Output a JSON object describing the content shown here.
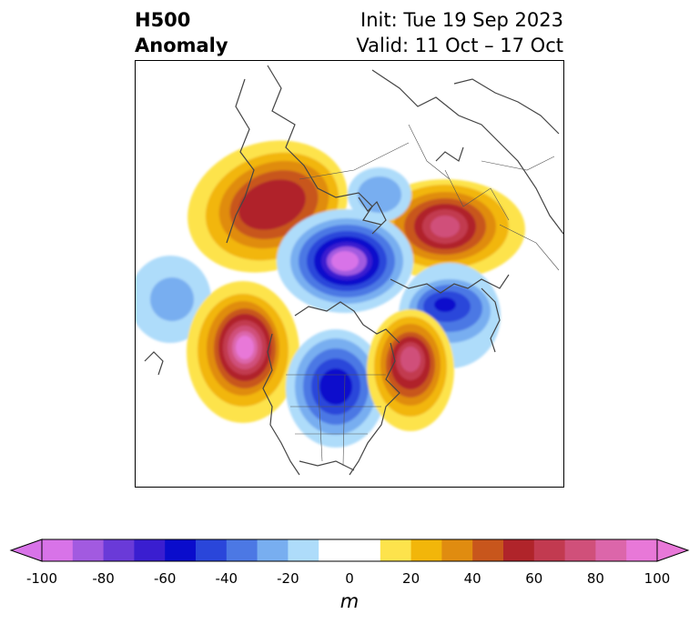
{
  "title": {
    "left_line1": "H500",
    "left_line2": "Anomaly",
    "init": "Init: Tue 19 Sep 2023",
    "valid": "Valid: 11 Oct – 17 Oct"
  },
  "colorbar": {
    "unit": "m",
    "ticks": [
      "-100",
      "-80",
      "-60",
      "-40",
      "-20",
      "0",
      "20",
      "40",
      "60",
      "80",
      "100"
    ],
    "bins": [
      {
        "from": -100,
        "to": -90,
        "color": "#d873e8"
      },
      {
        "from": -90,
        "to": -80,
        "color": "#a25ae0"
      },
      {
        "from": -80,
        "to": -70,
        "color": "#6a3ad8"
      },
      {
        "from": -70,
        "to": -60,
        "color": "#3a1ed0"
      },
      {
        "from": -60,
        "to": -50,
        "color": "#0a0ccc"
      },
      {
        "from": -50,
        "to": -40,
        "color": "#2a46da"
      },
      {
        "from": -40,
        "to": -30,
        "color": "#4c78e4"
      },
      {
        "from": -30,
        "to": -20,
        "color": "#78aef0"
      },
      {
        "from": -20,
        "to": -10,
        "color": "#aedcfa"
      },
      {
        "from": -10,
        "to": 10,
        "color": "#ffffff"
      },
      {
        "from": 10,
        "to": 20,
        "color": "#fde34c"
      },
      {
        "from": 20,
        "to": 30,
        "color": "#f2b60a"
      },
      {
        "from": 30,
        "to": 40,
        "color": "#e08c10"
      },
      {
        "from": 40,
        "to": 50,
        "color": "#c8561c"
      },
      {
        "from": 50,
        "to": 60,
        "color": "#b0242a"
      },
      {
        "from": 60,
        "to": 70,
        "color": "#c23a50"
      },
      {
        "from": 70,
        "to": 80,
        "color": "#d0507a"
      },
      {
        "from": 80,
        "to": 90,
        "color": "#dc66aa"
      },
      {
        "from": 90,
        "to": 100,
        "color": "#e878d8"
      }
    ],
    "extend_low_color": "#d873e8",
    "extend_high_color": "#e878d8"
  },
  "map": {
    "projection": "north-polar-stereographic",
    "field": "500 hPa geopotential height anomaly",
    "anomaly_centers": [
      {
        "region": "Western Russia / Siberia",
        "sign": "positive",
        "peak_m": 60
      },
      {
        "region": "Eastern Europe / Scandinavia",
        "sign": "positive",
        "peak_m": 80
      },
      {
        "region": "Arctic Ocean / Greenland",
        "sign": "negative",
        "peak_m": -90
      },
      {
        "region": "Northern Atlantic / UK",
        "sign": "negative",
        "peak_m": -60
      },
      {
        "region": "Northeast Pacific / Gulf of Alaska",
        "sign": "positive",
        "peak_m": 100
      },
      {
        "region": "Central Canada / US Plains",
        "sign": "negative",
        "peak_m": -70
      },
      {
        "region": "Northwest Atlantic / Newfoundland",
        "sign": "positive",
        "peak_m": 80
      },
      {
        "region": "Western North Pacific",
        "sign": "negative",
        "peak_m": -30
      }
    ]
  }
}
